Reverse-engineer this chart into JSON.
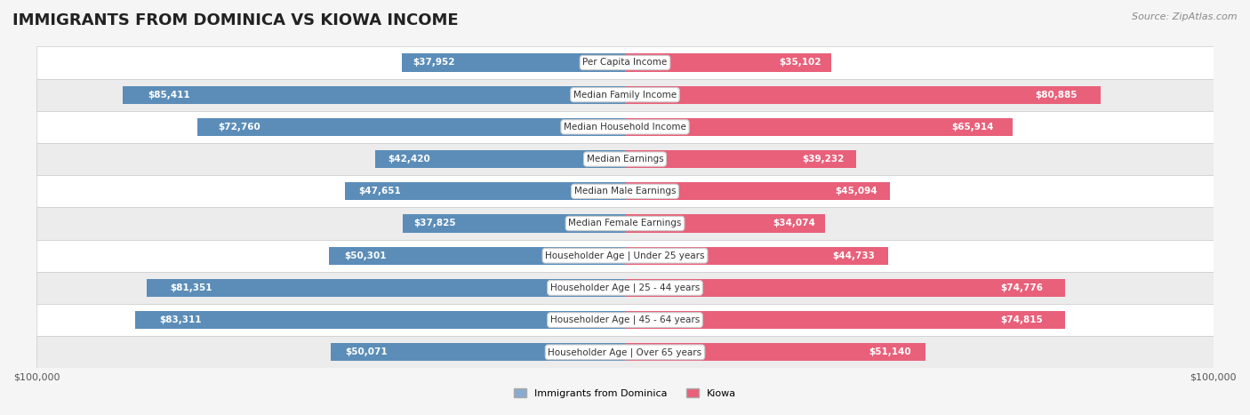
{
  "title": "IMMIGRANTS FROM DOMINICA VS KIOWA INCOME",
  "source": "Source: ZipAtlas.com",
  "categories": [
    "Per Capita Income",
    "Median Family Income",
    "Median Household Income",
    "Median Earnings",
    "Median Male Earnings",
    "Median Female Earnings",
    "Householder Age | Under 25 years",
    "Householder Age | 25 - 44 years",
    "Householder Age | 45 - 64 years",
    "Householder Age | Over 65 years"
  ],
  "dominica_values": [
    37952,
    85411,
    72760,
    42420,
    47651,
    37825,
    50301,
    81351,
    83311,
    50071
  ],
  "kiowa_values": [
    35102,
    80885,
    65914,
    39232,
    45094,
    34074,
    44733,
    74776,
    74815,
    51140
  ],
  "dominica_color": "#89ABCF",
  "dominica_color_dark": "#5B8DB8",
  "kiowa_color": "#F4A0B0",
  "kiowa_color_dark": "#E8607A",
  "bar_height": 0.35,
  "xlim": 100000,
  "background_color": "#f5f5f5",
  "row_bg_light": "#ffffff",
  "row_bg_dark": "#ececec"
}
